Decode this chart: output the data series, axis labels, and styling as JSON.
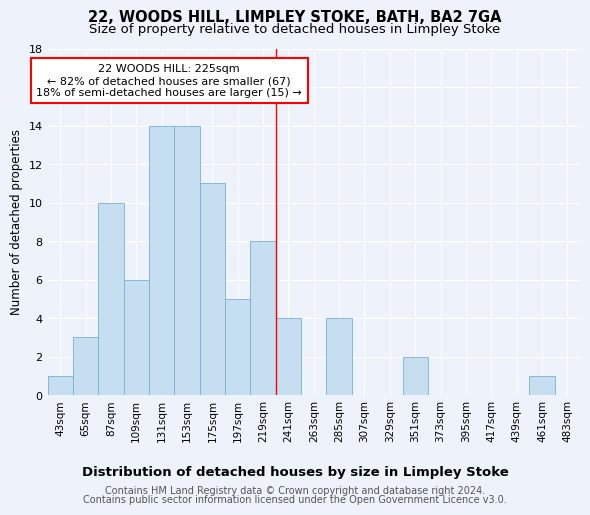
{
  "title": "22, WOODS HILL, LIMPLEY STOKE, BATH, BA2 7GA",
  "subtitle": "Size of property relative to detached houses in Limpley Stoke",
  "xlabel": "Distribution of detached houses by size in Limpley Stoke",
  "ylabel": "Number of detached properties",
  "footer_line1": "Contains HM Land Registry data © Crown copyright and database right 2024.",
  "footer_line2": "Contains public sector information licensed under the Open Government Licence v3.0.",
  "annotation_line1": "  22 WOODS HILL: 225sqm  ",
  "annotation_line2": "← 82% of detached houses are smaller (67)",
  "annotation_line3": "18% of semi-detached houses are larger (15) →",
  "bar_labels": [
    "43sqm",
    "65sqm",
    "87sqm",
    "109sqm",
    "131sqm",
    "153sqm",
    "175sqm",
    "197sqm",
    "219sqm",
    "241sqm",
    "263sqm",
    "285sqm",
    "307sqm",
    "329sqm",
    "351sqm",
    "373sqm",
    "395sqm",
    "417sqm",
    "439sqm",
    "461sqm",
    "483sqm"
  ],
  "bar_values": [
    1,
    3,
    10,
    6,
    14,
    14,
    11,
    5,
    8,
    4,
    0,
    4,
    0,
    0,
    2,
    0,
    0,
    0,
    0,
    1,
    0
  ],
  "bar_color": "#c5dff0",
  "bar_edge_color": "#7ab0d0",
  "reference_line_x": 8.5,
  "ylim": [
    0,
    18
  ],
  "yticks": [
    0,
    2,
    4,
    6,
    8,
    10,
    12,
    14,
    16,
    18
  ],
  "background_color": "#eef2fb",
  "annotation_box_color": "white",
  "annotation_box_edge_color": "red",
  "ref_line_color": "red",
  "title_fontsize": 10.5,
  "subtitle_fontsize": 9.5,
  "xlabel_fontsize": 9.5,
  "ylabel_fontsize": 8.5,
  "tick_fontsize": 7.5,
  "footer_fontsize": 7,
  "annotation_fontsize": 8
}
